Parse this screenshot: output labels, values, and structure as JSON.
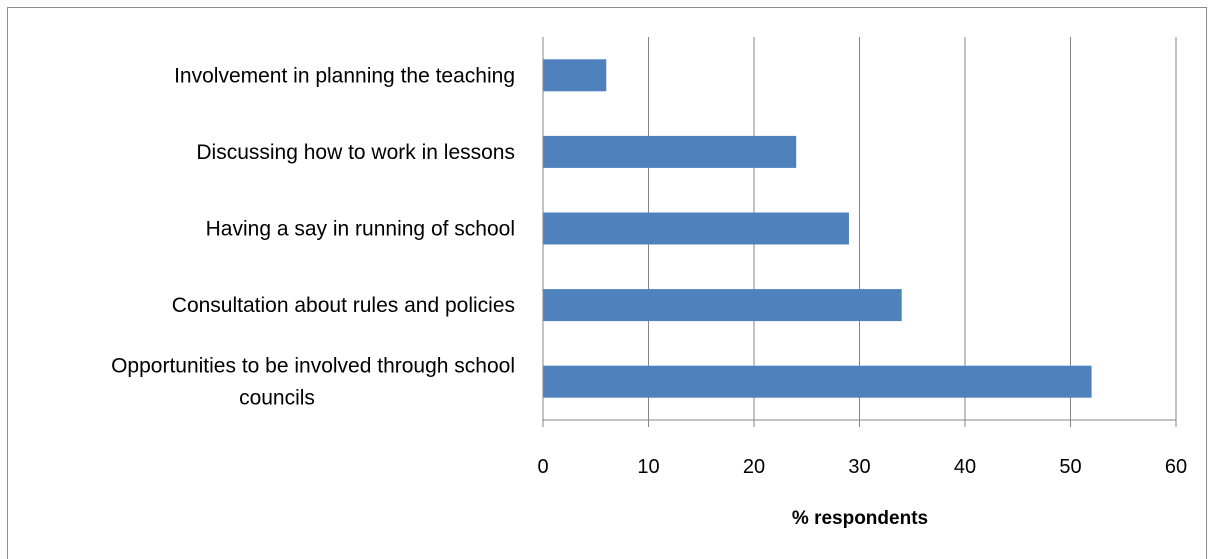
{
  "chart_data": {
    "type": "bar",
    "orientation": "horizontal",
    "categories": [
      "Involvement in planning the teaching",
      "Discussing how to work in lessons",
      "Having a say in running of school",
      "Consultation about rules and policies",
      "Opportunities to be involved through school councils"
    ],
    "category_lines": [
      [
        "Involvement in planning the teaching"
      ],
      [
        "Discussing how to work in lessons"
      ],
      [
        "Having a say in running of school"
      ],
      [
        "Consultation about rules and policies"
      ],
      [
        "Opportunities to be involved through school",
        "councils"
      ]
    ],
    "values": [
      6,
      24,
      29,
      34,
      52
    ],
    "title": "",
    "xlabel": "% respondents",
    "ylabel": "",
    "xlim": [
      0,
      60
    ],
    "xticks": [
      0,
      10,
      20,
      30,
      40,
      50,
      60
    ],
    "grid": "vertical",
    "legend": "none",
    "bar_color": "#4f81bd",
    "grid_color": "#868686"
  }
}
